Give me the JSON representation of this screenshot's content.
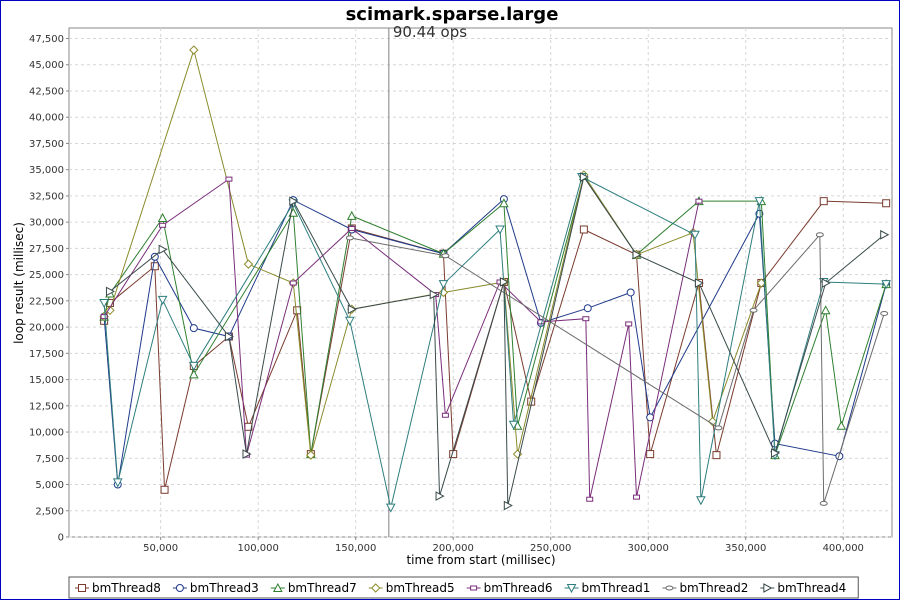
{
  "chart_data": {
    "type": "line",
    "title": "scimark.sparse.large",
    "annotation": "90.44 ops",
    "annotation_x": 167000,
    "xlabel": "time from start (millisec)",
    "ylabel": "loop result (millisec)",
    "xlim": [
      3000,
      425000
    ],
    "ylim": [
      0,
      48500
    ],
    "x_ticks": [
      50000,
      100000,
      150000,
      200000,
      250000,
      300000,
      350000,
      400000
    ],
    "x_tick_labels": [
      "50,000",
      "100,000",
      "150,000",
      "200,000",
      "250,000",
      "300,000",
      "350,000",
      "400,000"
    ],
    "y_ticks": [
      0,
      2500,
      5000,
      7500,
      10000,
      12500,
      15000,
      17500,
      20000,
      22500,
      25000,
      27500,
      30000,
      32500,
      35000,
      37500,
      40000,
      42500,
      45000,
      47500
    ],
    "y_tick_labels": [
      "0",
      "2,500",
      "5,000",
      "7,500",
      "10,000",
      "12,500",
      "15,000",
      "17,500",
      "20,000",
      "22,500",
      "25,000",
      "27,500",
      "30,000",
      "32,500",
      "35,000",
      "37,500",
      "40,000",
      "42,500",
      "45,000",
      "47,500"
    ],
    "grid": true,
    "legend_position": "bottom",
    "series": [
      {
        "name": "bmThread8",
        "color": "#7a3b2e",
        "marker": "square",
        "x": [
          21000,
          24000,
          47000,
          52000,
          67000,
          85000,
          95000,
          120000,
          127000,
          148000,
          195000,
          200000,
          226000,
          240000,
          267000,
          294000,
          301000,
          326000,
          335000,
          358000,
          390000,
          422000
        ],
        "y": [
          20600,
          22300,
          25800,
          4500,
          16300,
          19100,
          10500,
          21600,
          7900,
          29400,
          27000,
          7900,
          24300,
          12900,
          29300,
          26900,
          7900,
          24200,
          7800,
          24200,
          32000,
          31800
        ]
      },
      {
        "name": "bmThread3",
        "color": "#1f3a8a",
        "marker": "circle",
        "x": [
          21000,
          28000,
          47000,
          67000,
          85000,
          118000,
          148000,
          195000,
          226000,
          245000,
          269000,
          291000,
          301000,
          357000,
          365000,
          398000,
          422000
        ],
        "y": [
          21000,
          5000,
          26700,
          19900,
          19100,
          32100,
          29300,
          27000,
          32200,
          20400,
          21800,
          23300,
          11400,
          30800,
          8900,
          7700,
          24100
        ]
      },
      {
        "name": "bmThread7",
        "color": "#2f7f2f",
        "marker": "triangle-up",
        "x": [
          21000,
          24000,
          51000,
          67000,
          118000,
          127000,
          148000,
          195000,
          226000,
          233000,
          267000,
          294000,
          326000,
          358000,
          365000,
          391000,
          399000,
          422000
        ],
        "y": [
          21000,
          23200,
          30400,
          15500,
          30900,
          7900,
          30600,
          27000,
          31800,
          10600,
          34400,
          26900,
          32000,
          32000,
          7800,
          21600,
          10600,
          24100
        ]
      },
      {
        "name": "bmThread5",
        "color": "#8b8b2c",
        "marker": "diamond",
        "x": [
          21000,
          24000,
          67000,
          95000,
          118000,
          127000,
          148000,
          195000,
          226000,
          233000,
          267000,
          294000,
          323000,
          333000,
          358000
        ],
        "y": [
          21000,
          21600,
          46400,
          26000,
          24200,
          7800,
          21700,
          23300,
          24300,
          7900,
          34500,
          26900,
          29000,
          11000,
          24200
        ]
      },
      {
        "name": "bmThread6",
        "color": "#7a2e7a",
        "marker": "square-small",
        "x": [
          21000,
          51000,
          85000,
          94000,
          118000,
          148000,
          191000,
          196000,
          224000,
          245000,
          268000,
          270000,
          290000,
          294000,
          326000
        ],
        "y": [
          21000,
          29700,
          34100,
          7800,
          24200,
          29400,
          23100,
          11600,
          24300,
          20500,
          20800,
          3600,
          20300,
          3800,
          32000
        ]
      },
      {
        "name": "bmThread1",
        "color": "#2e7d7d",
        "marker": "triangle-down",
        "x": [
          21000,
          28000,
          51000,
          67000,
          118000,
          147000,
          168000,
          195000,
          224000,
          231000,
          266000,
          324000,
          327000,
          357000,
          365000,
          390000,
          422000
        ],
        "y": [
          22300,
          5200,
          22600,
          16300,
          31800,
          20600,
          2800,
          24100,
          29300,
          10700,
          34300,
          28800,
          3500,
          32000,
          7800,
          24300,
          24100
        ]
      },
      {
        "name": "bmThread2",
        "color": "#6b6b6b",
        "marker": "circle-small",
        "x": [
          147000,
          196000,
          336000,
          354000,
          388000,
          390000,
          421000
        ],
        "y": [
          28500,
          26800,
          10400,
          21600,
          28800,
          3200,
          21300
        ]
      },
      {
        "name": "bmThread4",
        "color": "#3a4a4a",
        "marker": "triangle-right",
        "x": [
          24000,
          51000,
          85000,
          94000,
          118000,
          148000,
          190000,
          193000,
          226000,
          228000,
          267000,
          294000,
          326000,
          365000,
          391000,
          421000
        ],
        "y": [
          23400,
          27400,
          19100,
          7900,
          32000,
          21700,
          23100,
          3900,
          24300,
          3000,
          34300,
          26900,
          24200,
          8000,
          24200,
          28800
        ]
      }
    ]
  }
}
